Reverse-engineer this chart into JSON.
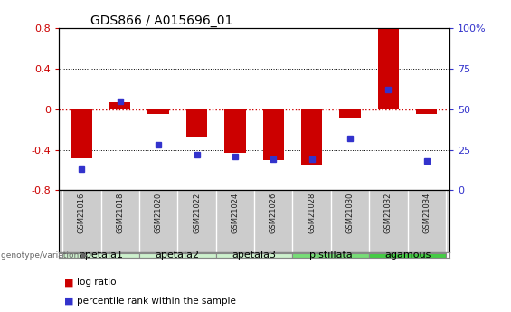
{
  "title": "GDS866 / A015696_01",
  "samples": [
    "GSM21016",
    "GSM21018",
    "GSM21020",
    "GSM21022",
    "GSM21024",
    "GSM21026",
    "GSM21028",
    "GSM21030",
    "GSM21032",
    "GSM21034"
  ],
  "log_ratio": [
    -0.48,
    0.07,
    -0.05,
    -0.27,
    -0.43,
    -0.5,
    -0.55,
    -0.08,
    0.8,
    -0.05
  ],
  "percentile_rank": [
    13,
    55,
    28,
    22,
    21,
    19,
    19,
    32,
    62,
    18
  ],
  "groups": [
    {
      "name": "apetala1",
      "indices": [
        0,
        1
      ],
      "color": "#ccf0cc"
    },
    {
      "name": "apetala2",
      "indices": [
        2,
        3
      ],
      "color": "#ccf0cc"
    },
    {
      "name": "apetala3",
      "indices": [
        4,
        5
      ],
      "color": "#ccf0cc"
    },
    {
      "name": "pistillata",
      "indices": [
        6,
        7
      ],
      "color": "#77dd77"
    },
    {
      "name": "agamous",
      "indices": [
        8,
        9
      ],
      "color": "#44cc44"
    }
  ],
  "ylim": [
    -0.8,
    0.8
  ],
  "yticks_left": [
    -0.8,
    -0.4,
    0.0,
    0.4,
    0.8
  ],
  "ytick_labels_left": [
    "-0.8",
    "-0.4",
    "0",
    "0.4",
    "0.8"
  ],
  "y2ticks_pct": [
    0,
    25,
    50,
    75,
    100
  ],
  "y2tick_labels": [
    "0",
    "25",
    "50",
    "75",
    "100%"
  ],
  "bar_color": "#cc0000",
  "dot_color": "#3333cc",
  "hline0_color": "#cc0000",
  "grid_color": "#000000",
  "background_color": "#ffffff",
  "label_bg_color": "#cccccc",
  "bar_width": 0.55,
  "legend_square_red": "log ratio",
  "legend_square_blue": "percentile rank within the sample",
  "genotype_label": "genotype/variation"
}
